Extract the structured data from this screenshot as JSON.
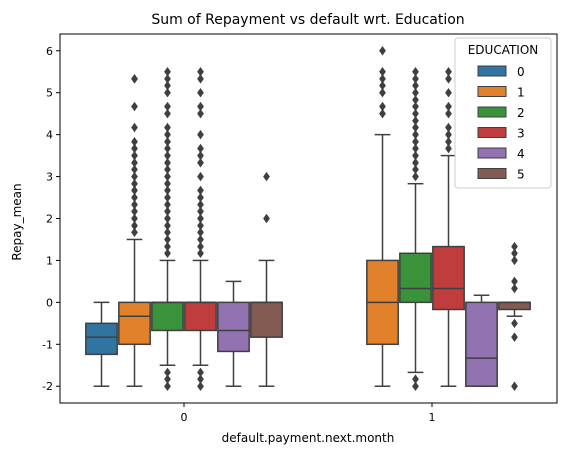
{
  "chart_data": {
    "type": "box",
    "title": "Sum of Repayment vs default wrt. Education",
    "xlabel": "default.payment.next.month",
    "ylabel": "Repay_mean",
    "categories": [
      "0",
      "1"
    ],
    "ylim": [
      -2.4,
      6.4
    ],
    "yticks": [
      "-2",
      "-1",
      "0",
      "1",
      "2",
      "3",
      "4",
      "5",
      "6"
    ],
    "grid": false,
    "legend": {
      "title": "EDUCATION",
      "placement": "top-right"
    },
    "series": [
      {
        "name": "0",
        "color": "#3274a1",
        "boxes": [
          {
            "q1": -1.24,
            "median": -0.83,
            "q3": -0.5,
            "whisker_low": -2.0,
            "whisker_high": 0.0,
            "outliers": []
          },
          null
        ]
      },
      {
        "name": "1",
        "color": "#e1812c",
        "boxes": [
          {
            "q1": -1.0,
            "median": -0.33,
            "q3": 0.0,
            "whisker_low": -2.0,
            "whisker_high": 1.5,
            "outliers": [
              1.67,
              1.83,
              2.0,
              2.17,
              2.33,
              2.5,
              2.67,
              2.83,
              3.0,
              3.17,
              3.33,
              3.5,
              3.67,
              3.83,
              4.17,
              4.67,
              5.33,
              5.33
            ]
          },
          {
            "q1": -1.0,
            "median": 0.0,
            "q3": 1.0,
            "whisker_low": -2.0,
            "whisker_high": 4.0,
            "outliers": [
              4.5,
              4.67,
              5.0,
              5.17,
              5.33,
              5.5,
              6.0
            ]
          }
        ]
      },
      {
        "name": "2",
        "color": "#3a923a",
        "boxes": [
          {
            "q1": -0.67,
            "median": 0.0,
            "q3": 0.0,
            "whisker_low": -1.5,
            "whisker_high": 1.0,
            "outliers": [
              -2.0,
              -1.83,
              -1.67,
              1.17,
              1.33,
              1.5,
              1.67,
              1.83,
              2.0,
              2.17,
              2.33,
              2.5,
              2.67,
              2.83,
              3.0,
              3.17,
              3.33,
              3.5,
              3.67,
              3.83,
              4.0,
              4.17,
              4.5,
              4.67,
              5.0,
              5.17,
              5.33,
              5.5
            ]
          },
          {
            "q1": 0.0,
            "median": 0.33,
            "q3": 1.17,
            "whisker_low": -1.67,
            "whisker_high": 2.83,
            "outliers": [
              -2.0,
              -1.83,
              3.0,
              3.17,
              3.33,
              3.5,
              3.67,
              3.83,
              4.0,
              4.17,
              4.33,
              4.5,
              4.67,
              4.83,
              5.0,
              5.17,
              5.33,
              5.5
            ]
          }
        ]
      },
      {
        "name": "3",
        "color": "#c03d3e",
        "boxes": [
          {
            "q1": -0.67,
            "median": 0.0,
            "q3": 0.0,
            "whisker_low": -1.5,
            "whisker_high": 1.0,
            "outliers": [
              -2.0,
              -1.83,
              -1.67,
              1.17,
              1.33,
              1.5,
              1.67,
              1.83,
              2.0,
              2.17,
              2.33,
              2.5,
              2.67,
              3.0,
              3.33,
              3.5,
              3.67,
              4.0,
              4.5,
              4.67,
              5.0,
              5.33,
              5.5
            ]
          },
          {
            "q1": -0.17,
            "median": 0.33,
            "q3": 1.33,
            "whisker_low": -2.0,
            "whisker_high": 3.5,
            "outliers": [
              3.67,
              3.83,
              4.0,
              4.17,
              4.5,
              4.67,
              5.0,
              5.33,
              5.5
            ]
          }
        ]
      },
      {
        "name": "4",
        "color": "#9372b2",
        "boxes": [
          {
            "q1": -1.17,
            "median": -0.67,
            "q3": 0.0,
            "whisker_low": -2.0,
            "whisker_high": 0.5,
            "outliers": []
          },
          {
            "q1": -2.0,
            "median": -1.33,
            "q3": 0.0,
            "whisker_low": -2.0,
            "whisker_high": 0.17,
            "outliers": []
          }
        ]
      },
      {
        "name": "5",
        "color": "#845b53",
        "boxes": [
          {
            "q1": -0.83,
            "median": 0.0,
            "q3": 0.0,
            "whisker_low": -2.0,
            "whisker_high": 1.0,
            "outliers": [
              2.0,
              3.0
            ]
          },
          {
            "q1": -0.17,
            "median": 0.0,
            "q3": 0.0,
            "whisker_low": -0.33,
            "whisker_high": 0.0,
            "outliers": [
              -2.0,
              -0.83,
              -0.5,
              0.33,
              0.5,
              1.0,
              1.17,
              1.33
            ]
          }
        ]
      }
    ]
  }
}
